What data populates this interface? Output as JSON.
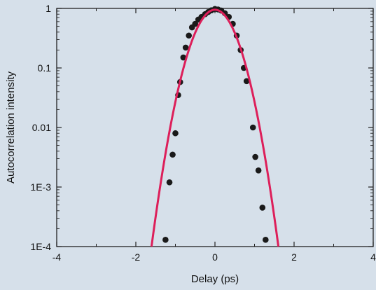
{
  "chart_data": {
    "type": "scatter",
    "title": "",
    "xlabel": "Delay (ps)",
    "ylabel": "Autocorrelation intensity",
    "xlim": [
      -4,
      4
    ],
    "ylim": [
      0.0001,
      1
    ],
    "yscale": "log",
    "grid": false,
    "x_ticks": [
      {
        "value": -4,
        "label": "-4"
      },
      {
        "value": -2,
        "label": "-2"
      },
      {
        "value": 0,
        "label": "0"
      },
      {
        "value": 2,
        "label": "2"
      },
      {
        "value": 4,
        "label": "4"
      }
    ],
    "y_ticks": [
      {
        "value": 1,
        "label": "1"
      },
      {
        "value": 0.1,
        "label": "0.1"
      },
      {
        "value": 0.01,
        "label": "0.01"
      },
      {
        "value": 0.001,
        "label": "1E-3"
      },
      {
        "value": 0.0001,
        "label": "1E-4"
      }
    ],
    "series": [
      {
        "kind": "points",
        "color": "#1a1a1a",
        "points": [
          {
            "x": -1.25,
            "y": 0.00013
          },
          {
            "x": -1.15,
            "y": 0.0012
          },
          {
            "x": -1.07,
            "y": 0.0035
          },
          {
            "x": -1.0,
            "y": 0.008
          },
          {
            "x": -0.93,
            "y": 0.035
          },
          {
            "x": -0.88,
            "y": 0.058
          },
          {
            "x": -0.8,
            "y": 0.15
          },
          {
            "x": -0.74,
            "y": 0.22
          },
          {
            "x": -0.66,
            "y": 0.35
          },
          {
            "x": -0.58,
            "y": 0.48
          },
          {
            "x": -0.5,
            "y": 0.55
          },
          {
            "x": -0.42,
            "y": 0.65
          },
          {
            "x": -0.34,
            "y": 0.72
          },
          {
            "x": -0.25,
            "y": 0.8
          },
          {
            "x": -0.17,
            "y": 0.87
          },
          {
            "x": -0.09,
            "y": 0.93
          },
          {
            "x": 0.0,
            "y": 0.98
          },
          {
            "x": 0.08,
            "y": 0.96
          },
          {
            "x": 0.16,
            "y": 0.92
          },
          {
            "x": 0.25,
            "y": 0.83
          },
          {
            "x": 0.35,
            "y": 0.72
          },
          {
            "x": 0.45,
            "y": 0.55
          },
          {
            "x": 0.55,
            "y": 0.35
          },
          {
            "x": 0.65,
            "y": 0.2
          },
          {
            "x": 0.73,
            "y": 0.1
          },
          {
            "x": 0.8,
            "y": 0.06
          },
          {
            "x": 0.96,
            "y": 0.01
          },
          {
            "x": 1.02,
            "y": 0.0032
          },
          {
            "x": 1.1,
            "y": 0.0019
          },
          {
            "x": 1.2,
            "y": 0.00045
          },
          {
            "x": 1.28,
            "y": 0.00013
          }
        ]
      },
      {
        "kind": "curve",
        "color": "#dd1f5a",
        "function": "gaussian",
        "center": 0,
        "peak": 0.95,
        "y_at_1": 0.027
      }
    ]
  }
}
